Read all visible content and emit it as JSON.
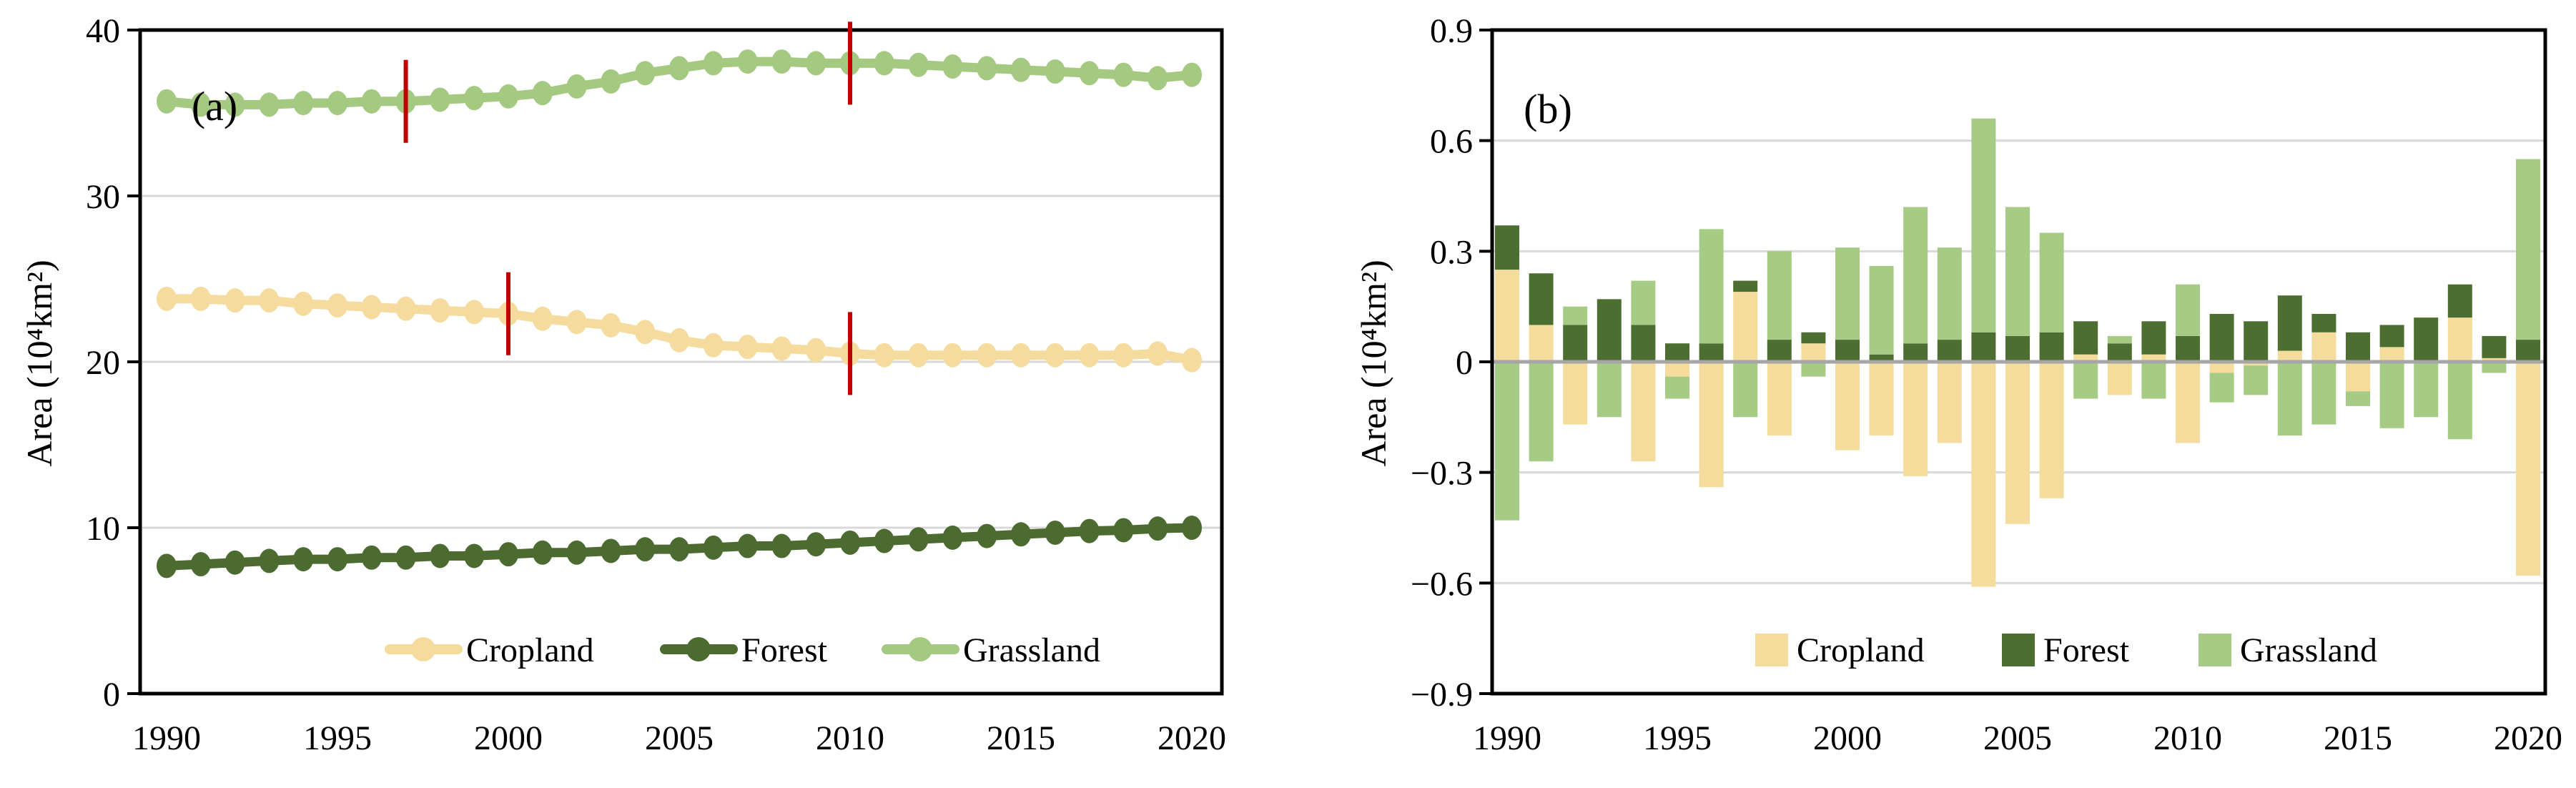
{
  "figure": {
    "background": "#ffffff",
    "grid_color": "#d9d9d9",
    "zero_line_color": "#a6a6a6",
    "axis_color": "#000000",
    "red_mark_color": "#c00000"
  },
  "chart_data": [
    {
      "id": "a",
      "type": "line",
      "panel_label": "(a)",
      "ylabel": "Area (10⁴km²)",
      "ylim": [
        0,
        40
      ],
      "y_ticks": [
        "0",
        "10",
        "20",
        "30",
        "40"
      ],
      "y_tick_values": [
        0,
        10,
        20,
        30,
        40
      ],
      "x_ticks": [
        "1990",
        "1995",
        "2000",
        "2005",
        "2010",
        "2015",
        "2020"
      ],
      "x_tick_values": [
        1990,
        1995,
        2000,
        2005,
        2010,
        2015,
        2020
      ],
      "x": [
        1990,
        1991,
        1992,
        1993,
        1994,
        1995,
        1996,
        1997,
        1998,
        1999,
        2000,
        2001,
        2002,
        2003,
        2004,
        2005,
        2006,
        2007,
        2008,
        2009,
        2010,
        2011,
        2012,
        2013,
        2014,
        2015,
        2016,
        2017,
        2018,
        2019,
        2020
      ],
      "grid": true,
      "legend_position": "bottom-inside",
      "series": [
        {
          "name": "Cropland",
          "color": "#f5dc9e",
          "values": [
            23.8,
            23.8,
            23.7,
            23.7,
            23.5,
            23.4,
            23.3,
            23.2,
            23.1,
            23.0,
            22.9,
            22.6,
            22.4,
            22.2,
            21.8,
            21.3,
            21.0,
            20.9,
            20.8,
            20.7,
            20.5,
            20.4,
            20.4,
            20.4,
            20.4,
            20.4,
            20.4,
            20.4,
            20.4,
            20.5,
            20.1
          ]
        },
        {
          "name": "Forest",
          "color": "#4b6b30",
          "values": [
            7.7,
            7.8,
            7.9,
            8.0,
            8.1,
            8.1,
            8.2,
            8.2,
            8.3,
            8.3,
            8.4,
            8.5,
            8.5,
            8.6,
            8.7,
            8.7,
            8.8,
            8.9,
            8.9,
            9.0,
            9.1,
            9.2,
            9.3,
            9.4,
            9.5,
            9.6,
            9.7,
            9.8,
            9.85,
            9.95,
            10.0
          ]
        },
        {
          "name": "Grassland",
          "color": "#a4c980",
          "values": [
            35.7,
            35.5,
            35.5,
            35.5,
            35.6,
            35.6,
            35.7,
            35.7,
            35.8,
            35.9,
            36.0,
            36.2,
            36.6,
            36.9,
            37.4,
            37.7,
            38.0,
            38.1,
            38.1,
            38.0,
            38.0,
            38.0,
            37.9,
            37.8,
            37.7,
            37.6,
            37.5,
            37.4,
            37.3,
            37.1,
            37.3
          ]
        }
      ],
      "annotations": [
        {
          "type": "red-vertical-mark",
          "year": 1997,
          "series": "Grassland"
        },
        {
          "type": "red-vertical-mark",
          "year": 2000,
          "series": "Cropland"
        },
        {
          "type": "red-vertical-mark",
          "year": 2010,
          "series": "Grassland"
        },
        {
          "type": "red-vertical-mark",
          "year": 2010,
          "series": "Cropland"
        }
      ]
    },
    {
      "id": "b",
      "type": "stacked-bar",
      "panel_label": "(b)",
      "ylabel": "Area (10⁴km²)",
      "ylim": [
        -0.9,
        0.9
      ],
      "y_ticks": [
        "0.9",
        "0.6",
        "0.3",
        "0",
        "−0.3",
        "−0.6",
        "−0.9"
      ],
      "y_tick_values": [
        0.9,
        0.6,
        0.3,
        0,
        -0.3,
        -0.6,
        -0.9
      ],
      "x_ticks": [
        "1990",
        "1995",
        "2000",
        "2005",
        "2010",
        "2015",
        "2020"
      ],
      "x_tick_values": [
        1990,
        1995,
        2000,
        2005,
        2010,
        2015,
        2020
      ],
      "x": [
        1990,
        1991,
        1992,
        1993,
        1994,
        1995,
        1996,
        1997,
        1998,
        1999,
        2000,
        2001,
        2002,
        2003,
        2004,
        2005,
        2006,
        2007,
        2008,
        2009,
        2010,
        2011,
        2012,
        2013,
        2014,
        2015,
        2016,
        2017,
        2018,
        2019,
        2020
      ],
      "grid": true,
      "legend_position": "bottom-inside",
      "series": [
        {
          "name": "Cropland",
          "color": "#f4dc9d",
          "values": [
            0.25,
            0.1,
            -0.17,
            0.0,
            -0.27,
            -0.04,
            -0.34,
            0.19,
            -0.2,
            0.05,
            -0.24,
            -0.2,
            -0.31,
            -0.22,
            -0.61,
            -0.44,
            -0.37,
            0.02,
            -0.09,
            0.02,
            -0.22,
            -0.03,
            -0.01,
            0.03,
            0.08,
            -0.08,
            0.04,
            0.0,
            0.12,
            0.01,
            -0.58
          ]
        },
        {
          "name": "Forest",
          "color": "#4c6e31",
          "values": [
            0.12,
            0.14,
            0.1,
            0.17,
            0.1,
            0.05,
            0.05,
            0.03,
            0.06,
            0.03,
            0.06,
            0.02,
            0.05,
            0.06,
            0.08,
            0.07,
            0.08,
            0.09,
            0.05,
            0.09,
            0.07,
            0.13,
            0.11,
            0.15,
            0.05,
            0.08,
            0.06,
            0.12,
            0.09,
            0.06,
            0.06
          ]
        },
        {
          "name": "Grassland",
          "color": "#a6cb84",
          "values": [
            -0.43,
            -0.27,
            0.05,
            -0.15,
            0.12,
            -0.06,
            0.31,
            -0.15,
            0.24,
            -0.04,
            0.25,
            0.24,
            0.37,
            0.25,
            0.58,
            0.35,
            0.27,
            -0.1,
            0.02,
            -0.1,
            0.14,
            -0.08,
            -0.08,
            -0.2,
            -0.17,
            -0.04,
            -0.18,
            -0.15,
            -0.21,
            -0.03,
            0.49
          ]
        }
      ]
    }
  ]
}
